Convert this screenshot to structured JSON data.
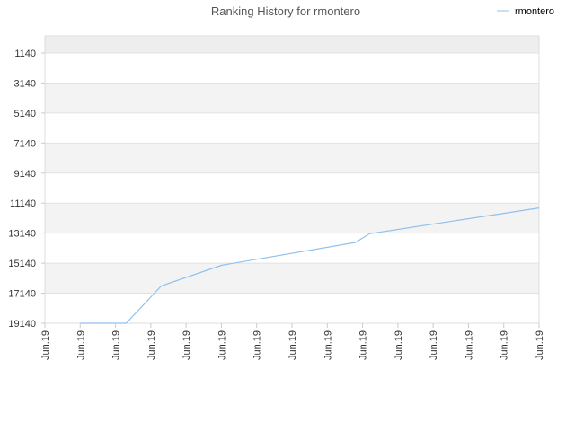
{
  "chart_data": {
    "type": "line",
    "title": "Ranking History for rmontero",
    "xlabel": "",
    "ylabel": "",
    "y_reversed": true,
    "ylim": [
      1140,
      19140
    ],
    "y_ticks": [
      "1140",
      "3140",
      "5140",
      "7140",
      "9140",
      "11140",
      "13140",
      "15140",
      "17140",
      "19140"
    ],
    "y_tick_values": [
      1140,
      3140,
      5140,
      7140,
      9140,
      11140,
      13140,
      15140,
      17140,
      19140
    ],
    "x_ticks": [
      "Jun.19",
      "Jun.19",
      "Jun.19",
      "Jun.19",
      "Jun.19",
      "Jun.19",
      "Jun.19",
      "Jun.19",
      "Jun.19",
      "Jun.19",
      "Jun.19",
      "Jun.19",
      "Jun.19",
      "Jun.19",
      "Jun.19"
    ],
    "legend_position": "top-right",
    "grid": true,
    "series": [
      {
        "name": "rmontero",
        "color": "#90c0ee",
        "x_index": [
          1.0,
          2.3,
          3.3,
          5.0,
          8.8,
          9.2,
          14.0
        ],
        "values": [
          19140,
          19140,
          16650,
          15280,
          13760,
          13180,
          11460
        ]
      }
    ]
  }
}
